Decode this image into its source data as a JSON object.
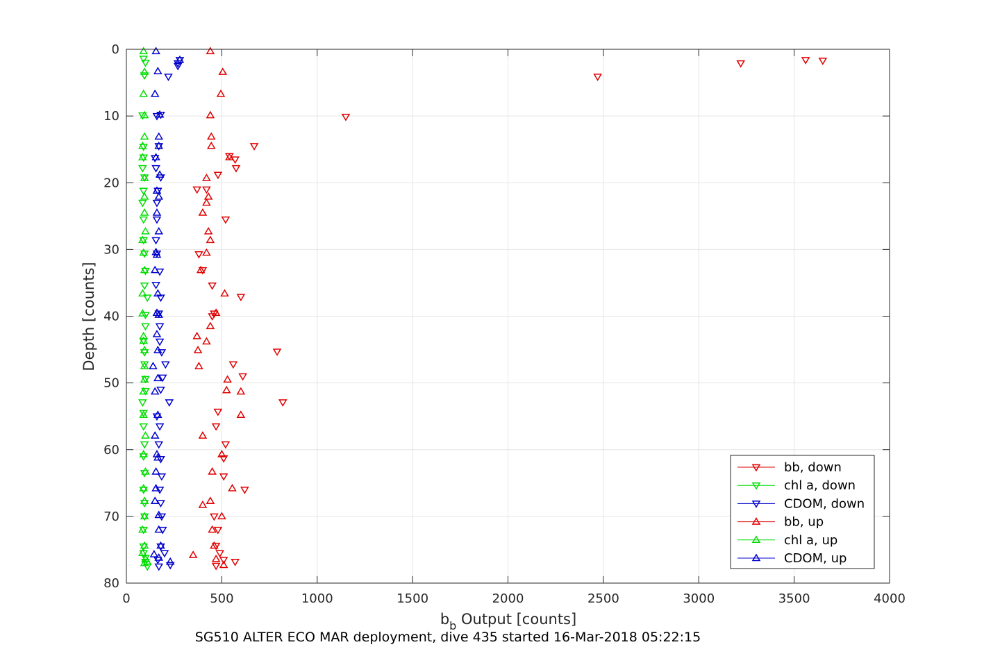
{
  "chart_data": {
    "type": "scatter",
    "title": "",
    "caption": "SG510 ALTER ECO MAR deployment, dive 435 started 16-Mar-2018 05:22:15",
    "xlabel_main": "b",
    "xlabel_sub": "b",
    "xlabel_rest": " Output [counts]",
    "ylabel": "Depth [counts]",
    "xlim": [
      0,
      4000
    ],
    "ylim": [
      0,
      80
    ],
    "y_reversed": true,
    "grid": true,
    "legend_position": "bottom-right",
    "x_ticks": [
      "0",
      "500",
      "1000",
      "1500",
      "2000",
      "2500",
      "3000",
      "3500",
      "4000"
    ],
    "y_ticks": [
      "0",
      "10",
      "20",
      "30",
      "40",
      "50",
      "60",
      "70",
      "80"
    ],
    "colors": {
      "red": "#e00000",
      "green": "#00dd00",
      "blue": "#0000cc",
      "axis": "#262626",
      "grid": "#e5e5e5"
    },
    "series": [
      {
        "name": "bb, down",
        "color": "#e00000",
        "marker": "triangle-down",
        "points": [
          [
            3560,
            1.6
          ],
          [
            3650,
            1.7
          ],
          [
            3220,
            2.1
          ],
          [
            2470,
            4.1
          ],
          [
            1150,
            10.1
          ],
          [
            670,
            14.5
          ],
          [
            570,
            16.5
          ],
          [
            540,
            16.0
          ],
          [
            575,
            17.8
          ],
          [
            480,
            18.8
          ],
          [
            420,
            21.0
          ],
          [
            370,
            21.0
          ],
          [
            520,
            25.5
          ],
          [
            380,
            30.7
          ],
          [
            400,
            33.1
          ],
          [
            450,
            35.4
          ],
          [
            600,
            37.1
          ],
          [
            460,
            39.6
          ],
          [
            450,
            40.0
          ],
          [
            790,
            45.3
          ],
          [
            560,
            47.2
          ],
          [
            610,
            49.0
          ],
          [
            820,
            52.9
          ],
          [
            480,
            54.3
          ],
          [
            470,
            56.5
          ],
          [
            520,
            59.2
          ],
          [
            510,
            61.3
          ],
          [
            510,
            64.0
          ],
          [
            620,
            66.0
          ],
          [
            460,
            70.0
          ],
          [
            480,
            72.0
          ],
          [
            470,
            74.4
          ],
          [
            490,
            75.5
          ],
          [
            510,
            76.5
          ],
          [
            470,
            77.4
          ],
          [
            570,
            76.8
          ]
        ]
      },
      {
        "name": "chl a, down",
        "color": "#00dd00",
        "marker": "triangle-down",
        "points": [
          [
            90,
            1.4
          ],
          [
            100,
            2.0
          ],
          [
            95,
            3.9
          ],
          [
            85,
            9.9
          ],
          [
            90,
            14.6
          ],
          [
            90,
            16.2
          ],
          [
            85,
            17.8
          ],
          [
            95,
            19.2
          ],
          [
            90,
            21.2
          ],
          [
            85,
            23.0
          ],
          [
            90,
            25.5
          ],
          [
            90,
            28.6
          ],
          [
            95,
            30.6
          ],
          [
            100,
            33.2
          ],
          [
            95,
            35.4
          ],
          [
            110,
            37.2
          ],
          [
            100,
            39.8
          ],
          [
            100,
            41.5
          ],
          [
            90,
            43.7
          ],
          [
            95,
            45.4
          ],
          [
            95,
            47.2
          ],
          [
            100,
            49.4
          ],
          [
            100,
            51.2
          ],
          [
            85,
            52.9
          ],
          [
            90,
            54.5
          ],
          [
            90,
            56.5
          ],
          [
            95,
            59.2
          ],
          [
            90,
            61.0
          ],
          [
            95,
            63.5
          ],
          [
            90,
            66.0
          ],
          [
            95,
            68.0
          ],
          [
            95,
            70.0
          ],
          [
            90,
            72.0
          ],
          [
            90,
            74.5
          ],
          [
            90,
            75.5
          ],
          [
            100,
            76.2
          ],
          [
            100,
            76.8
          ],
          [
            110,
            77.5
          ]
        ]
      },
      {
        "name": "CDOM, down",
        "color": "#0000cc",
        "marker": "triangle-down",
        "points": [
          [
            280,
            1.6
          ],
          [
            270,
            2.1
          ],
          [
            270,
            2.5
          ],
          [
            220,
            4.1
          ],
          [
            160,
            10.0
          ],
          [
            180,
            9.8
          ],
          [
            170,
            14.5
          ],
          [
            150,
            16.3
          ],
          [
            155,
            17.8
          ],
          [
            180,
            19.2
          ],
          [
            165,
            21.2
          ],
          [
            160,
            23.0
          ],
          [
            160,
            25.5
          ],
          [
            155,
            28.6
          ],
          [
            160,
            30.6
          ],
          [
            175,
            33.3
          ],
          [
            155,
            35.3
          ],
          [
            180,
            37.2
          ],
          [
            170,
            39.6
          ],
          [
            175,
            41.5
          ],
          [
            175,
            43.8
          ],
          [
            185,
            45.4
          ],
          [
            205,
            47.2
          ],
          [
            190,
            49.2
          ],
          [
            180,
            51.0
          ],
          [
            225,
            52.9
          ],
          [
            160,
            55.0
          ],
          [
            175,
            56.5
          ],
          [
            170,
            59.2
          ],
          [
            180,
            61.4
          ],
          [
            185,
            64.0
          ],
          [
            175,
            66.0
          ],
          [
            180,
            68.0
          ],
          [
            185,
            70.0
          ],
          [
            190,
            72.0
          ],
          [
            180,
            74.5
          ],
          [
            200,
            75.5
          ],
          [
            165,
            76.5
          ],
          [
            230,
            77.3
          ],
          [
            170,
            77.5
          ]
        ]
      },
      {
        "name": "bb, up",
        "color": "#e00000",
        "marker": "triangle-up",
        "points": [
          [
            440,
            0.3
          ],
          [
            505,
            3.4
          ],
          [
            495,
            6.7
          ],
          [
            440,
            9.9
          ],
          [
            445,
            13.1
          ],
          [
            445,
            14.5
          ],
          [
            540,
            16.2
          ],
          [
            420,
            19.3
          ],
          [
            430,
            22.1
          ],
          [
            420,
            23.0
          ],
          [
            400,
            24.5
          ],
          [
            430,
            27.3
          ],
          [
            440,
            28.6
          ],
          [
            420,
            30.5
          ],
          [
            390,
            33.1
          ],
          [
            515,
            36.6
          ],
          [
            470,
            39.5
          ],
          [
            440,
            41.5
          ],
          [
            370,
            43.0
          ],
          [
            420,
            43.8
          ],
          [
            375,
            45.1
          ],
          [
            380,
            47.5
          ],
          [
            530,
            49.5
          ],
          [
            525,
            51.1
          ],
          [
            600,
            51.3
          ],
          [
            600,
            54.8
          ],
          [
            400,
            57.9
          ],
          [
            500,
            60.7
          ],
          [
            450,
            63.3
          ],
          [
            555,
            65.8
          ],
          [
            400,
            68.3
          ],
          [
            440,
            67.7
          ],
          [
            500,
            70.0
          ],
          [
            450,
            72.0
          ],
          [
            460,
            74.4
          ],
          [
            350,
            75.8
          ],
          [
            470,
            76.4
          ],
          [
            510,
            77.3
          ]
        ]
      },
      {
        "name": "chl a, up",
        "color": "#00dd00",
        "marker": "triangle-up",
        "points": [
          [
            90,
            0.3
          ],
          [
            95,
            3.4
          ],
          [
            90,
            6.7
          ],
          [
            95,
            9.9
          ],
          [
            95,
            13.1
          ],
          [
            85,
            14.5
          ],
          [
            85,
            16.2
          ],
          [
            95,
            19.3
          ],
          [
            95,
            22.1
          ],
          [
            95,
            24.5
          ],
          [
            100,
            27.3
          ],
          [
            85,
            28.6
          ],
          [
            90,
            30.5
          ],
          [
            95,
            33.1
          ],
          [
            85,
            36.6
          ],
          [
            85,
            39.6
          ],
          [
            90,
            43.0
          ],
          [
            90,
            43.7
          ],
          [
            95,
            45.1
          ],
          [
            95,
            47.5
          ],
          [
            95,
            49.5
          ],
          [
            90,
            51.3
          ],
          [
            90,
            54.8
          ],
          [
            100,
            57.9
          ],
          [
            90,
            60.7
          ],
          [
            100,
            63.3
          ],
          [
            90,
            65.8
          ],
          [
            95,
            67.7
          ],
          [
            95,
            70.0
          ],
          [
            85,
            72.0
          ],
          [
            95,
            74.4
          ],
          [
            85,
            75.5
          ],
          [
            100,
            76.4
          ],
          [
            95,
            77.0
          ],
          [
            110,
            76.8
          ]
        ]
      },
      {
        "name": "CDOM, up",
        "color": "#0000cc",
        "marker": "triangle-up",
        "points": [
          [
            155,
            0.3
          ],
          [
            280,
            1.6
          ],
          [
            165,
            3.3
          ],
          [
            150,
            6.7
          ],
          [
            175,
            9.8
          ],
          [
            170,
            13.1
          ],
          [
            170,
            14.5
          ],
          [
            155,
            16.2
          ],
          [
            175,
            18.8
          ],
          [
            160,
            21.2
          ],
          [
            170,
            22.1
          ],
          [
            160,
            24.5
          ],
          [
            170,
            27.3
          ],
          [
            155,
            30.4
          ],
          [
            160,
            30.8
          ],
          [
            150,
            33.1
          ],
          [
            165,
            36.6
          ],
          [
            160,
            39.5
          ],
          [
            170,
            39.8
          ],
          [
            160,
            42.7
          ],
          [
            165,
            45.1
          ],
          [
            140,
            47.5
          ],
          [
            165,
            49.3
          ],
          [
            150,
            51.3
          ],
          [
            165,
            54.8
          ],
          [
            150,
            57.9
          ],
          [
            160,
            60.7
          ],
          [
            165,
            61.2
          ],
          [
            155,
            63.3
          ],
          [
            155,
            65.8
          ],
          [
            150,
            67.7
          ],
          [
            170,
            69.8
          ],
          [
            170,
            72.0
          ],
          [
            180,
            74.4
          ],
          [
            145,
            75.7
          ],
          [
            170,
            76.2
          ],
          [
            230,
            76.8
          ]
        ]
      }
    ]
  }
}
